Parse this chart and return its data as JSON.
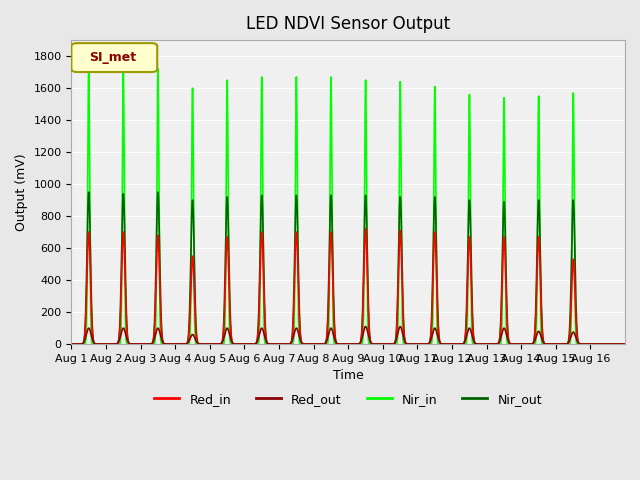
{
  "title": "LED NDVI Sensor Output",
  "xlabel": "Time",
  "ylabel": "Output (mV)",
  "ylim": [
    0,
    1900
  ],
  "yticks": [
    0,
    200,
    400,
    600,
    800,
    1000,
    1200,
    1400,
    1600,
    1800
  ],
  "background_color": "#e8e8e8",
  "plot_bg_color": "#f0f0f0",
  "legend_label": "SI_met",
  "series": {
    "Red_in": {
      "color": "#ff0000",
      "lw": 1.2
    },
    "Red_out": {
      "color": "#8b0000",
      "lw": 1.2
    },
    "Nir_in": {
      "color": "#00ff00",
      "lw": 1.2
    },
    "Nir_out": {
      "color": "#006400",
      "lw": 1.2
    }
  },
  "num_days": 16,
  "spike_peak_nir_in": [
    1730,
    1700,
    1720,
    1600,
    1650,
    1670,
    1670,
    1670,
    1650,
    1640,
    1610,
    1560,
    1540,
    1550,
    1570
  ],
  "spike_peak_nir_out": [
    950,
    940,
    950,
    900,
    920,
    930,
    930,
    930,
    930,
    920,
    920,
    900,
    890,
    900,
    900
  ],
  "spike_peak_red_in": [
    700,
    700,
    680,
    550,
    670,
    700,
    700,
    700,
    720,
    710,
    700,
    670,
    670,
    670,
    530
  ],
  "spike_peak_red_out": [
    100,
    100,
    100,
    60,
    100,
    100,
    100,
    100,
    110,
    110,
    100,
    100,
    100,
    80,
    75
  ],
  "xtick_labels": [
    "Aug 1",
    "Aug 2",
    "Aug 3",
    "Aug 4",
    "Aug 5",
    "Aug 6",
    "Aug 7",
    "Aug 8",
    "Aug 9",
    "Aug 10",
    "Aug 11",
    "Aug 12",
    "Aug 13",
    "Aug 14",
    "Aug 15",
    "Aug 16"
  ],
  "xtick_positions": [
    0,
    1,
    2,
    3,
    4,
    5,
    6,
    7,
    8,
    9,
    10,
    11,
    12,
    13,
    14,
    15
  ],
  "samples_per_day": 200
}
